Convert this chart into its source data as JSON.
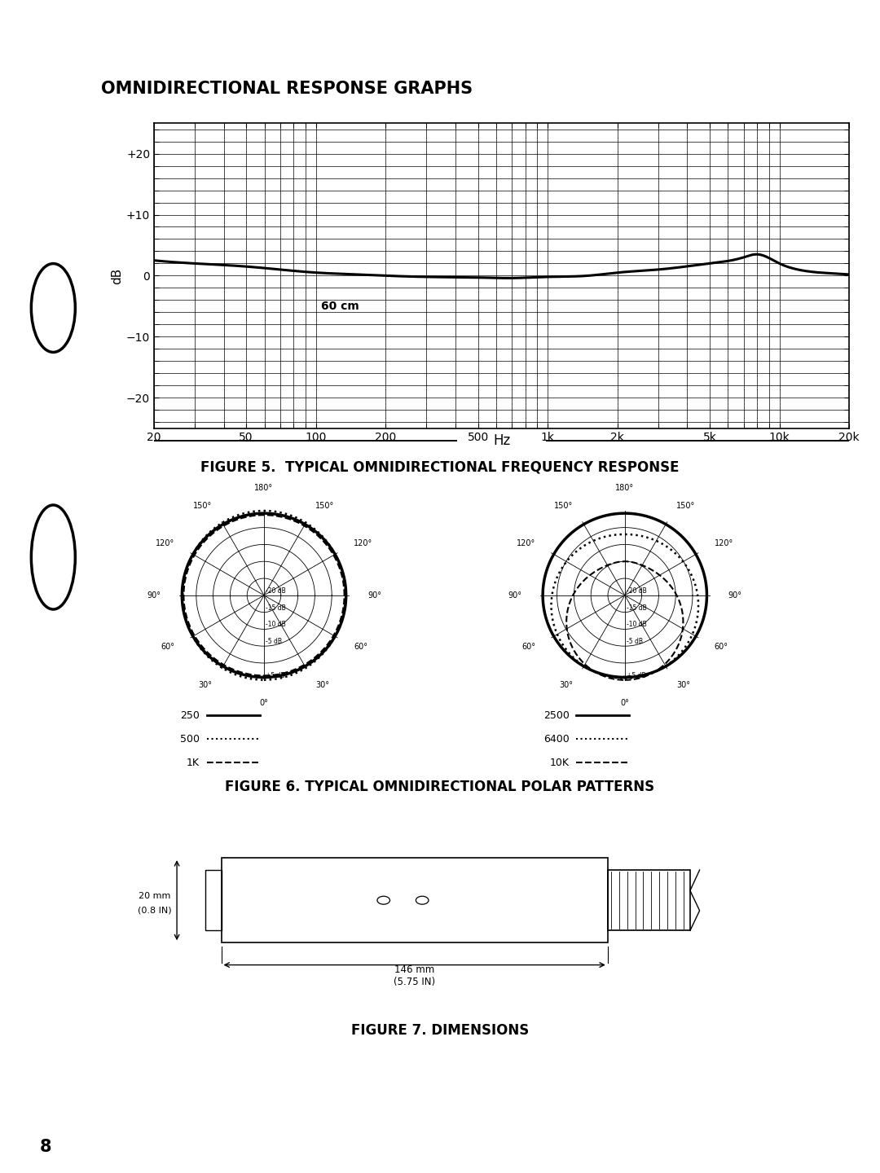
{
  "page_bg": "#ffffff",
  "title_section": "OMNIDIRECTIONAL RESPONSE GRAPHS",
  "fig5_caption": "FIGURE 5.  TYPICAL OMNIDIRECTIONAL FREQUENCY RESPONSE",
  "fig6_caption": "FIGURE 6. TYPICAL OMNIDIRECTIONAL POLAR PATTERNS",
  "fig7_caption": "FIGURE 7. DIMENSIONS",
  "freq_yticks": [
    -20,
    -10,
    0,
    10,
    20
  ],
  "freq_ytick_labels": [
    "−20",
    "−10",
    "0",
    "+10",
    "+20"
  ],
  "freq_xticks": [
    20,
    50,
    100,
    200,
    500,
    1000,
    2000,
    5000,
    10000,
    20000
  ],
  "freq_xtick_labels": [
    "20",
    "50",
    "100",
    "200",
    "500",
    "1k",
    "2k",
    "5k",
    "10k",
    "20k"
  ],
  "freq_xlabel": "Hz",
  "freq_ylabel": "dB",
  "freq_ylim": [
    -25,
    25
  ],
  "freq_annotation": "60 cm",
  "polar1_legend": [
    "250",
    "500",
    "1K"
  ],
  "polar2_legend": [
    "2500",
    "6400",
    "10K"
  ],
  "dim_width_mm": "146 mm",
  "dim_width_in": "(5.75 IN)",
  "dim_height_mm": "20 mm",
  "dim_height_in": "(0.8 IN)",
  "freq_curve_freqs": [
    20,
    30,
    50,
    70,
    100,
    150,
    200,
    300,
    500,
    700,
    1000,
    1500,
    2000,
    3000,
    5000,
    7000,
    8000,
    10000,
    12000,
    15000,
    20000
  ],
  "freq_curve_db": [
    2.5,
    2.0,
    1.5,
    1.0,
    0.5,
    0.2,
    0.0,
    -0.2,
    -0.3,
    -0.4,
    -0.2,
    0.0,
    0.5,
    1.0,
    2.0,
    3.0,
    3.5,
    2.0,
    1.0,
    0.5,
    0.2
  ]
}
